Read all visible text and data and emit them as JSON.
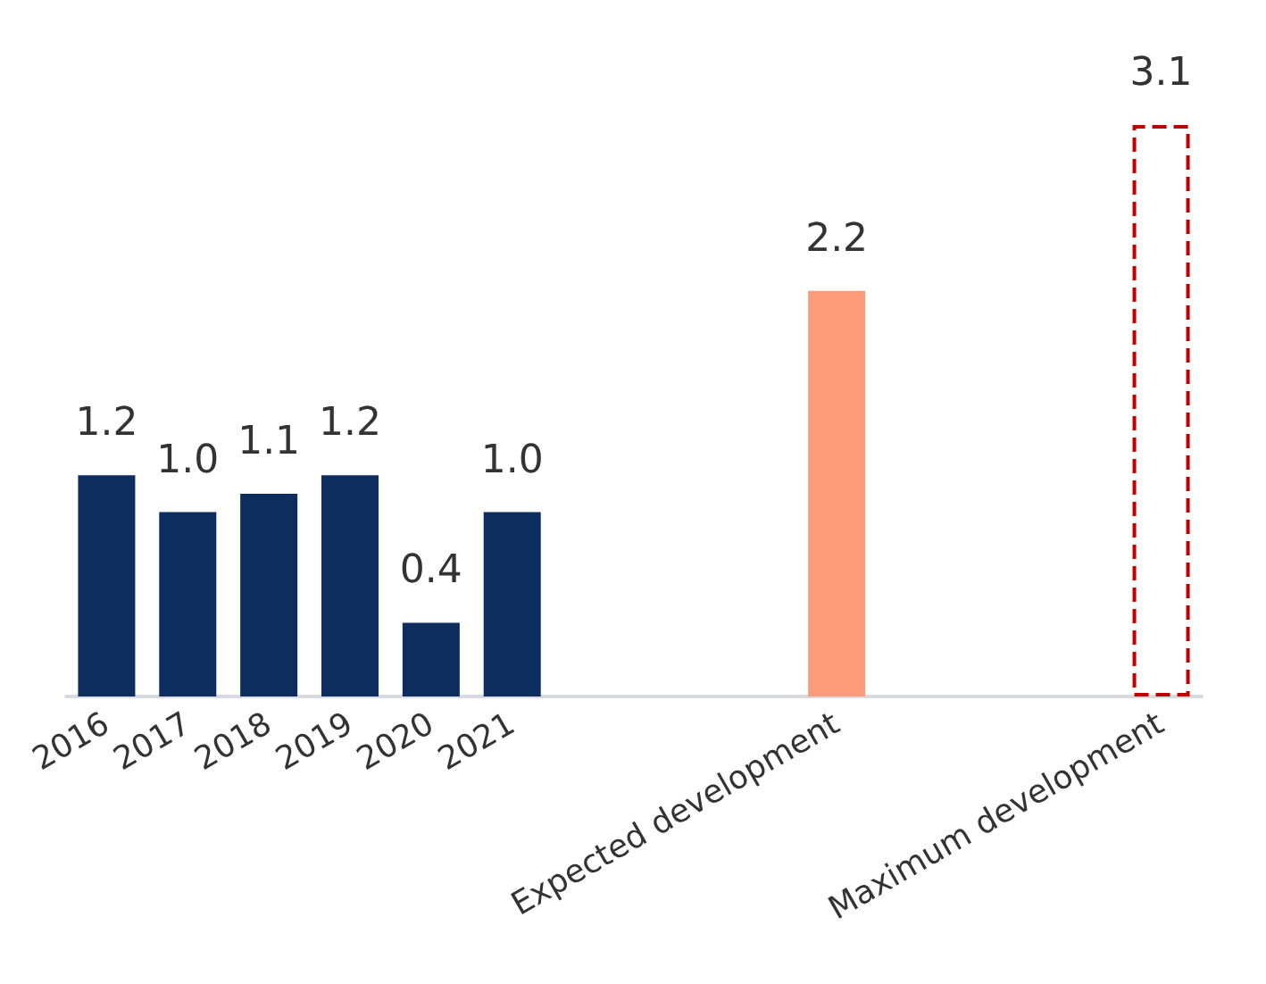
{
  "chart_data": {
    "type": "bar",
    "categories": [
      "2016",
      "2017",
      "2018",
      "2019",
      "2020",
      "2021",
      null,
      null,
      null,
      "Expected development",
      null,
      null,
      null,
      "Maximum development"
    ],
    "series": [
      {
        "color": "#0c2d5e",
        "values": [
          1.2,
          1.0,
          1.1,
          1.2,
          0.4,
          1.0,
          null,
          null,
          null,
          null,
          null,
          null,
          null,
          null
        ],
        "value_labels": [
          "1.2",
          "1.0",
          "1.1",
          "1.2",
          "0.4",
          "1.0",
          null,
          null,
          null,
          null,
          null,
          null,
          null,
          null
        ]
      },
      {
        "color": "#fd9a7a",
        "values": [
          null,
          null,
          null,
          null,
          null,
          null,
          null,
          null,
          null,
          2.2,
          null,
          null,
          null,
          null
        ],
        "value_labels": [
          null,
          null,
          null,
          null,
          null,
          null,
          null,
          null,
          null,
          "2.2",
          null,
          null,
          null,
          null
        ]
      },
      {
        "color": "#c00000",
        "line_style": "dashed",
        "values": [
          null,
          null,
          null,
          null,
          null,
          null,
          null,
          null,
          null,
          null,
          null,
          null,
          null,
          3.1
        ],
        "value_labels": [
          null,
          null,
          null,
          null,
          null,
          null,
          null,
          null,
          null,
          null,
          null,
          null,
          null,
          "3.1"
        ]
      }
    ]
  }
}
